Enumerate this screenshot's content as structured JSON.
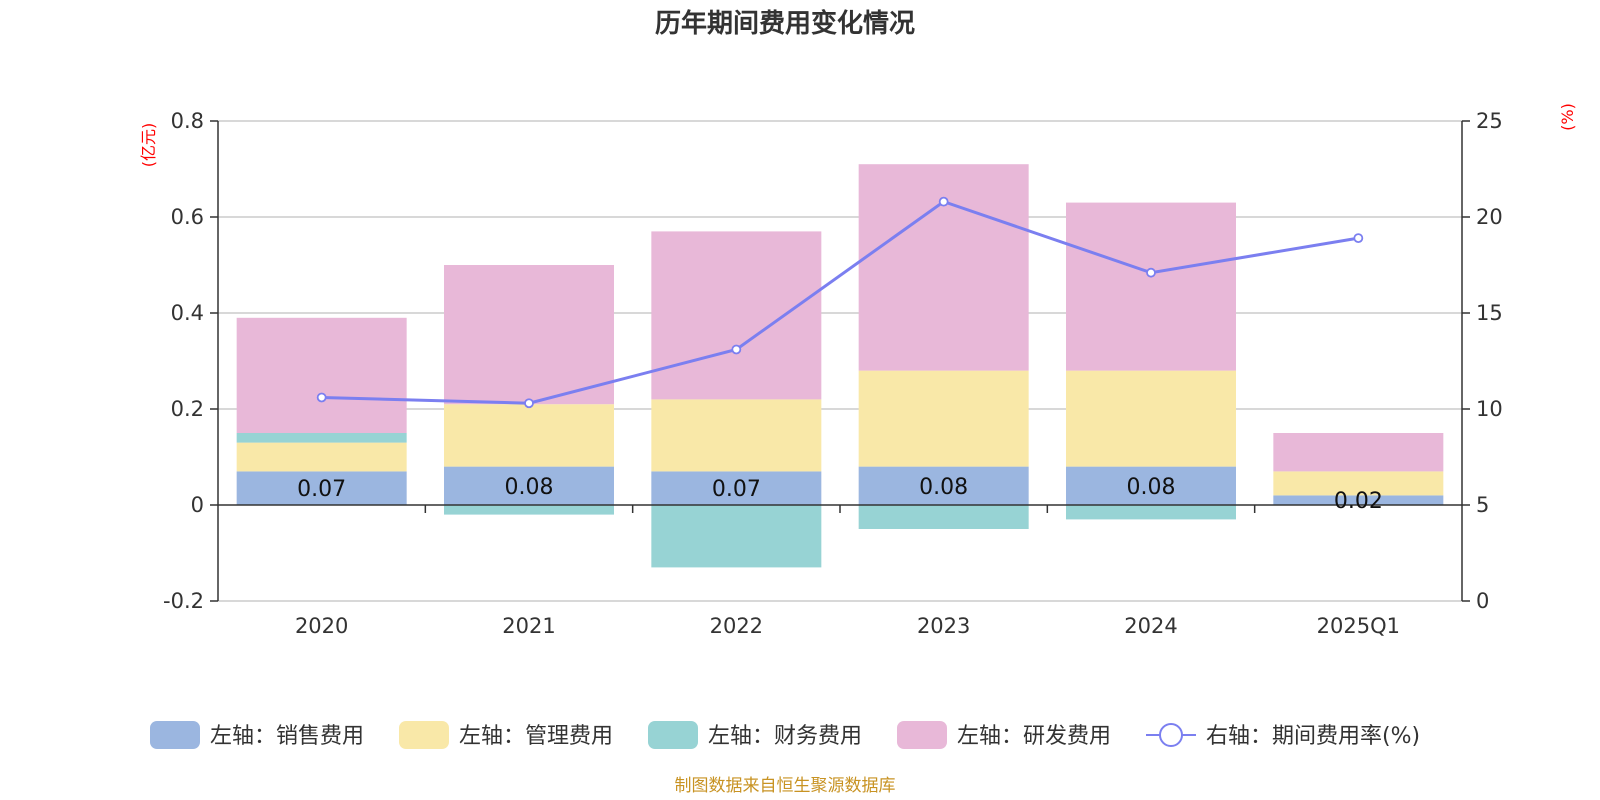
{
  "chart_data": {
    "type": "bar",
    "stacked": true,
    "title": "历年期间费用变化情况",
    "categories": [
      "2020",
      "2021",
      "2022",
      "2023",
      "2024",
      "2025Q1"
    ],
    "left_axis": {
      "unit_label": "(亿元)",
      "range": [
        -0.2,
        0.8
      ],
      "ticks": [
        -0.2,
        0,
        0.2,
        0.4,
        0.6,
        0.8
      ],
      "tick_labels": [
        "-0.2",
        "0",
        "0.2",
        "0.4",
        "0.6",
        "0.8"
      ]
    },
    "right_axis": {
      "unit_label": "(%)",
      "range": [
        0,
        25
      ],
      "ticks": [
        0,
        5,
        10,
        15,
        20,
        25
      ],
      "tick_labels": [
        "0",
        "5",
        "10",
        "15",
        "20",
        "25"
      ]
    },
    "grid": true,
    "legend_position": "bottom",
    "series": [
      {
        "name": "左轴：销售费用",
        "type": "bar",
        "axis": "left",
        "color": "#9bb6e0",
        "values": [
          0.07,
          0.08,
          0.07,
          0.08,
          0.08,
          0.02
        ],
        "data_labels": [
          "0.07",
          "0.08",
          "0.07",
          "0.08",
          "0.08",
          "0.02"
        ]
      },
      {
        "name": "左轴：管理费用",
        "type": "bar",
        "axis": "left",
        "color": "#f9e8a8",
        "values": [
          0.06,
          0.13,
          0.15,
          0.2,
          0.2,
          0.05
        ]
      },
      {
        "name": "左轴：财务费用",
        "type": "bar",
        "axis": "left",
        "color": "#97d3d4",
        "values": [
          0.02,
          -0.02,
          -0.13,
          -0.05,
          -0.03,
          0.0
        ]
      },
      {
        "name": "左轴：研发费用",
        "type": "bar",
        "axis": "left",
        "color": "#e8b8d8",
        "values": [
          0.24,
          0.29,
          0.35,
          0.43,
          0.35,
          0.08
        ]
      },
      {
        "name": "右轴：期间费用率(%)",
        "type": "line",
        "axis": "right",
        "color": "#7b7ff0",
        "values": [
          10.6,
          10.3,
          13.1,
          20.8,
          17.1,
          18.9
        ]
      }
    ]
  },
  "source_note": "制图数据来自恒生聚源数据库"
}
